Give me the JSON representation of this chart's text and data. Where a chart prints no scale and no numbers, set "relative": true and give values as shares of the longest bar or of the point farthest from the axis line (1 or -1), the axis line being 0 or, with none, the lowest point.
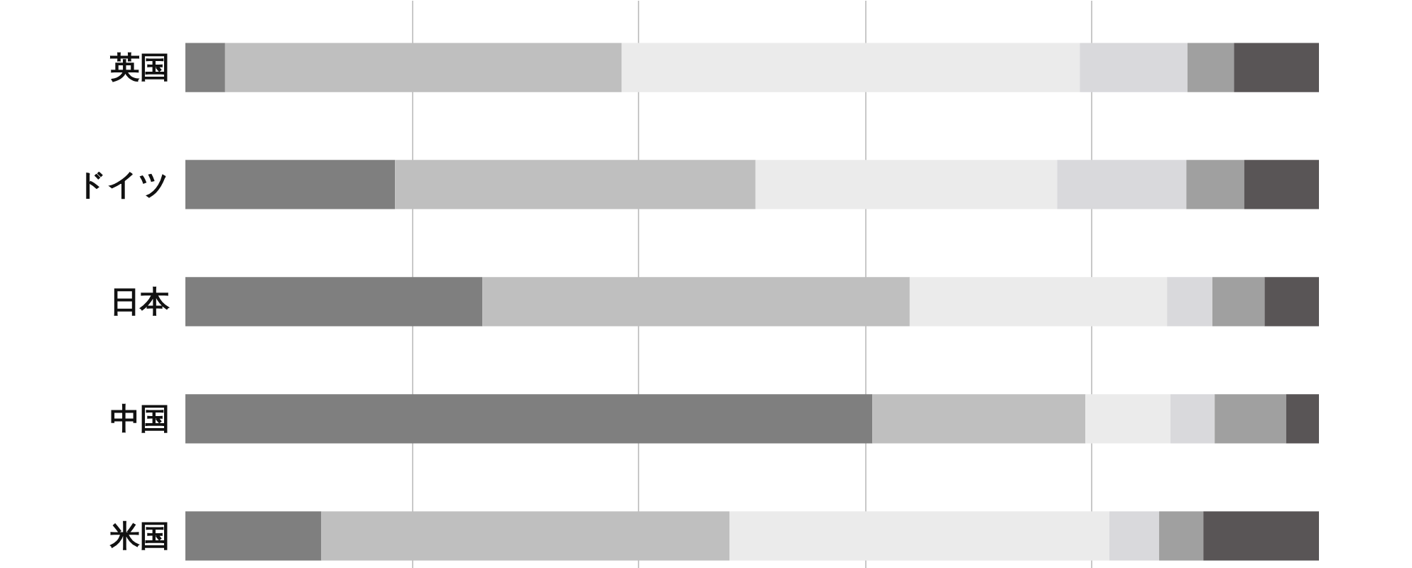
{
  "chart_data": {
    "type": "bar",
    "orientation": "horizontal",
    "stacked": true,
    "relative": true,
    "grid": "x",
    "categories": [
      "英国",
      "ドイツ",
      "日本",
      "中国",
      "米国"
    ],
    "series": [
      {
        "color": "#7f7f7f",
        "values": [
          0.035,
          0.185,
          0.262,
          0.606,
          0.12
        ]
      },
      {
        "color": "#bfbfbf",
        "values": [
          0.35,
          0.318,
          0.377,
          0.188,
          0.36
        ]
      },
      {
        "color": "#ebebeb",
        "values": [
          0.404,
          0.266,
          0.227,
          0.075,
          0.335
        ]
      },
      {
        "color": "#d9d9dc",
        "values": [
          0.095,
          0.114,
          0.04,
          0.039,
          0.044
        ]
      },
      {
        "color": "#a0a0a0",
        "values": [
          0.041,
          0.051,
          0.046,
          0.063,
          0.039
        ]
      },
      {
        "color": "#595556",
        "values": [
          0.075,
          0.066,
          0.048,
          0.029,
          0.102
        ]
      }
    ]
  }
}
